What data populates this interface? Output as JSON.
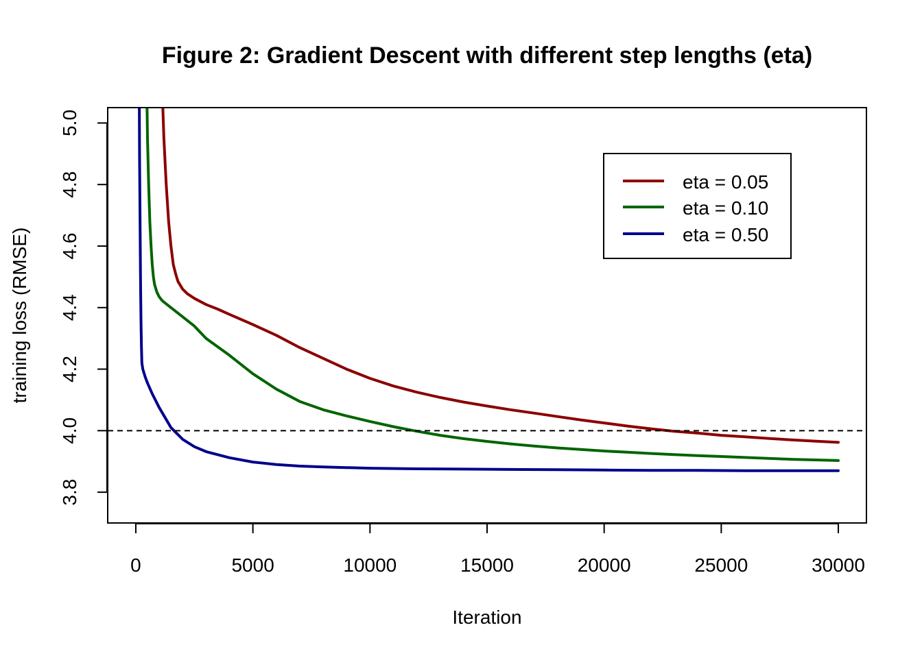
{
  "chart_data": {
    "type": "line",
    "title": "Figure 2: Gradient Descent with different step lengths (eta)",
    "xlabel": "Iteration",
    "ylabel": "training loss (RMSE)",
    "xlim": [
      -1200,
      31200
    ],
    "ylim": [
      3.7,
      5.05
    ],
    "xticks": [
      0,
      5000,
      10000,
      15000,
      20000,
      25000,
      30000
    ],
    "xtick_labels": [
      "0",
      "5000",
      "10000",
      "15000",
      "20000",
      "25000",
      "30000"
    ],
    "yticks": [
      3.8,
      4.0,
      4.2,
      4.4,
      4.6,
      4.8,
      5.0
    ],
    "ytick_labels": [
      "3.8",
      "4.0",
      "4.2",
      "4.4",
      "4.6",
      "4.8",
      "5.0"
    ],
    "reference_line": {
      "y": 4.0,
      "style": "dashed",
      "color": "#000000"
    },
    "legend": {
      "position": "top-right"
    },
    "grid": false,
    "series": [
      {
        "name": "eta = 0.05",
        "color": "#8B0000",
        "x": [
          1150,
          1200,
          1300,
          1400,
          1500,
          1600,
          1700,
          1800,
          2000,
          2200,
          2500,
          3000,
          3500,
          4000,
          5000,
          6000,
          7000,
          8000,
          9000,
          10000,
          11000,
          12000,
          13000,
          14000,
          15000,
          16000,
          17000,
          18000,
          19000,
          20000,
          21000,
          22000,
          23000,
          24000,
          25000,
          26000,
          27000,
          28000,
          29000,
          30000
        ],
        "y": [
          5.06,
          4.95,
          4.8,
          4.68,
          4.6,
          4.54,
          4.51,
          4.485,
          4.46,
          4.445,
          4.43,
          4.41,
          4.395,
          4.378,
          4.345,
          4.31,
          4.27,
          4.235,
          4.2,
          4.17,
          4.145,
          4.125,
          4.108,
          4.093,
          4.08,
          4.068,
          4.057,
          4.046,
          4.035,
          4.025,
          4.015,
          4.006,
          3.998,
          3.992,
          3.985,
          3.98,
          3.975,
          3.97,
          3.966,
          3.962
        ]
      },
      {
        "name": "eta = 0.10",
        "color": "#006400",
        "x": [
          480,
          500,
          550,
          600,
          650,
          700,
          750,
          800,
          900,
          1000,
          1100,
          1200,
          1500,
          2000,
          2500,
          3000,
          4000,
          5000,
          6000,
          7000,
          8000,
          9000,
          10000,
          11000,
          12000,
          13000,
          14000,
          15000,
          16000,
          17000,
          18000,
          19000,
          20000,
          21000,
          22000,
          23000,
          24000,
          25000,
          26000,
          27000,
          28000,
          29000,
          30000
        ],
        "y": [
          5.06,
          4.95,
          4.8,
          4.68,
          4.6,
          4.54,
          4.5,
          4.475,
          4.45,
          4.435,
          4.425,
          4.418,
          4.4,
          4.37,
          4.34,
          4.3,
          4.245,
          4.185,
          4.135,
          4.095,
          4.068,
          4.048,
          4.03,
          4.013,
          3.998,
          3.985,
          3.974,
          3.965,
          3.957,
          3.95,
          3.944,
          3.939,
          3.934,
          3.93,
          3.926,
          3.922,
          3.919,
          3.916,
          3.913,
          3.91,
          3.907,
          3.905,
          3.903
        ]
      },
      {
        "name": "eta = 0.50",
        "color": "#00008B",
        "x": [
          150,
          160,
          180,
          200,
          220,
          240,
          260,
          300,
          400,
          500,
          700,
          1000,
          1500,
          2000,
          2500,
          3000,
          4000,
          5000,
          6000,
          7000,
          8000,
          9000,
          10000,
          12000,
          14000,
          16000,
          18000,
          20000,
          22000,
          24000,
          26000,
          28000,
          30000
        ],
        "y": [
          5.06,
          4.9,
          4.7,
          4.5,
          4.36,
          4.27,
          4.22,
          4.2,
          4.175,
          4.155,
          4.12,
          4.075,
          4.01,
          3.972,
          3.948,
          3.932,
          3.912,
          3.898,
          3.89,
          3.885,
          3.882,
          3.88,
          3.878,
          3.876,
          3.875,
          3.874,
          3.873,
          3.872,
          3.871,
          3.871,
          3.87,
          3.87,
          3.87
        ]
      }
    ]
  }
}
